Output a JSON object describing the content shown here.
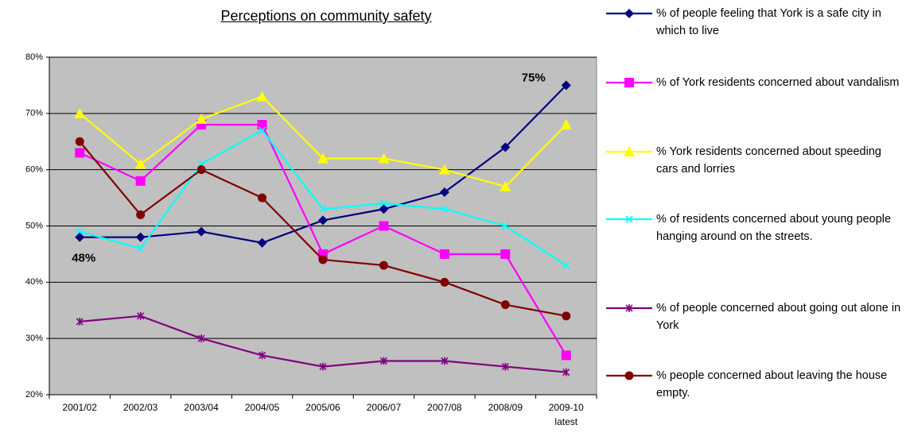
{
  "chart_data": {
    "type": "line",
    "title": "Perceptions on community safety",
    "categories": [
      "2001/02",
      "2002/03",
      "2003/04",
      "2004/05",
      "2005/06",
      "2006/07",
      "2007/08",
      "2008/09",
      "2009-10 latest"
    ],
    "series": [
      {
        "name": "% of people feeling that York is a safe city in which to live",
        "color": "#000080",
        "marker": "diamond",
        "values": [
          48,
          48,
          49,
          47,
          51,
          53,
          56,
          64,
          75
        ],
        "value_labels": [
          "48%",
          null,
          null,
          null,
          null,
          null,
          null,
          null,
          "75%"
        ]
      },
      {
        "name": "% of York residents concerned about vandalism",
        "color": "#ff00ff",
        "marker": "square",
        "values": [
          63,
          58,
          68,
          68,
          45,
          50,
          45,
          45,
          27
        ]
      },
      {
        "name": "% York residents concerned about speeding cars and lorries",
        "color": "#ffff00",
        "marker": "triangle",
        "values": [
          70,
          61,
          69,
          73,
          62,
          62,
          60,
          57,
          68
        ]
      },
      {
        "name": "% of residents concerned about young people hanging around on the streets.",
        "color": "#00ffff",
        "marker": "x",
        "values": [
          49,
          46,
          61,
          67,
          53,
          54,
          53,
          50,
          43
        ]
      },
      {
        "name": "% of people concerned about going out alone in York",
        "color": "#800080",
        "marker": "star",
        "values": [
          33,
          34,
          30,
          27,
          25,
          26,
          26,
          25,
          24
        ]
      },
      {
        "name": "% people concerned about leaving the house empty.",
        "color": "#800000",
        "marker": "circle",
        "values": [
          65,
          52,
          60,
          55,
          44,
          43,
          40,
          36,
          34
        ]
      }
    ],
    "ylim": [
      20,
      80
    ],
    "yticks": [
      {
        "value": 20,
        "label": "20%"
      },
      {
        "value": 30,
        "label": "30%"
      },
      {
        "value": 40,
        "label": "40%"
      },
      {
        "value": 50,
        "label": "50%"
      },
      {
        "value": 60,
        "label": "60%"
      },
      {
        "value": 70,
        "label": "70%"
      },
      {
        "value": 80,
        "label": "80%"
      }
    ],
    "grid": true,
    "plot_background": "#c0c0c0",
    "legend": "right"
  }
}
